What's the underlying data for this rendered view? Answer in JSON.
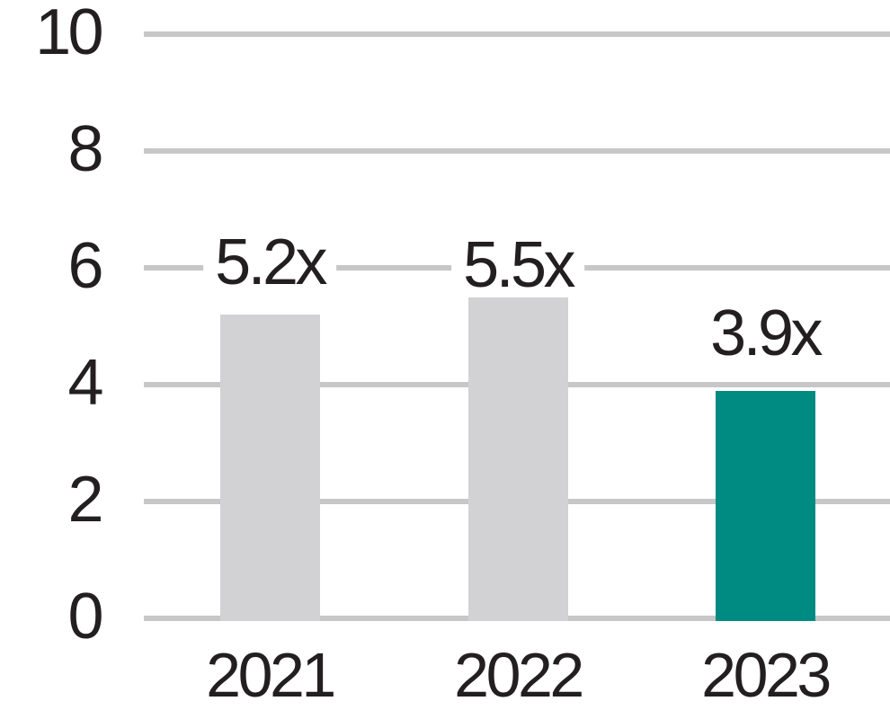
{
  "chart_data": {
    "type": "bar",
    "categories": [
      "2021",
      "2022",
      "2023"
    ],
    "values": [
      5.2,
      5.5,
      3.9
    ],
    "bar_labels": [
      "5.2x",
      "5.5x",
      "3.9x"
    ],
    "bar_colors": [
      "#d2d2d4",
      "#d2d2d4",
      "#008b82"
    ],
    "highlight_index": 2,
    "ylim": [
      0,
      10
    ],
    "yticks": [
      0,
      2,
      4,
      6,
      8,
      10
    ],
    "grid": true,
    "legend": false,
    "colors": {
      "gray_bar": "#d2d2d4",
      "teal_bar": "#008b82",
      "gridline": "#c7c7c7",
      "text": "#231f20",
      "background": "#ffffff"
    }
  }
}
